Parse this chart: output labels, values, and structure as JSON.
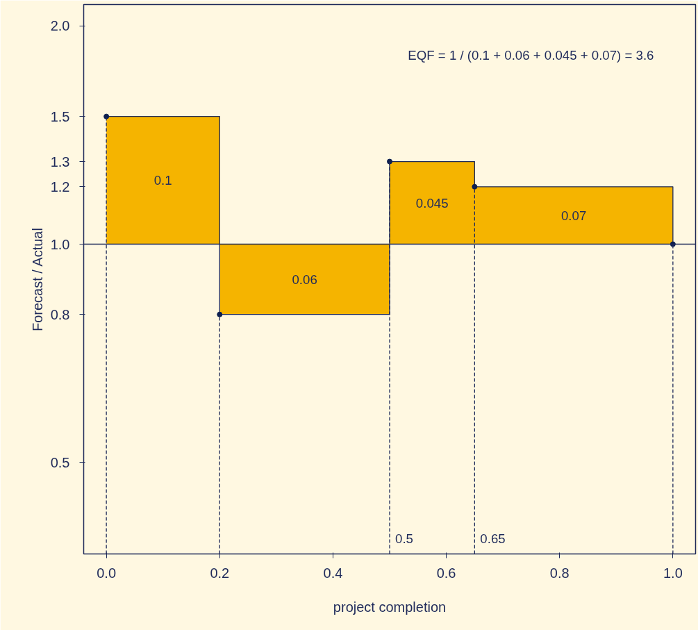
{
  "chart_data": {
    "type": "area",
    "xlabel": "project completion",
    "ylabel": "Forecast / Actual",
    "log": "y",
    "grid": false,
    "xlim": [
      -0.04,
      1.04
    ],
    "ylim": [
      0.374,
      2.14
    ],
    "xticks": [
      {
        "value": 0,
        "label": "0.0"
      },
      0.2,
      0.4,
      0.6,
      0.8,
      {
        "value": 1,
        "label": "1.0"
      }
    ],
    "yticks": [
      0.5,
      0.8,
      {
        "value": 1,
        "label": "1.0"
      },
      1.2,
      1.3,
      1.5,
      {
        "value": 2,
        "label": "2.0"
      }
    ],
    "series": [
      {
        "color": "#f5b400",
        "x": [
          0,
          0.2,
          0.5,
          0.65,
          1.0
        ],
        "values": [
          1.5,
          0.8,
          1.3,
          1.2,
          1.0
        ]
      },
      {
        "type": "scatter",
        "color": "#0d1f4f",
        "marker": "circle",
        "x": [
          0,
          0.2,
          0.5,
          0.65,
          1.0
        ],
        "values": [
          1.5,
          0.8,
          1.3,
          1.2,
          1.0
        ]
      }
    ],
    "ref_lines": [
      {
        "axis": "y",
        "value": 1.0,
        "color": "#1f2a5a",
        "line_style": "solid"
      },
      {
        "axis": "x",
        "value": 0,
        "color": "#1f2a5a",
        "line_style": "dashed"
      },
      {
        "axis": "x",
        "value": 0.2,
        "color": "#1f2a5a",
        "line_style": "dashed"
      },
      {
        "axis": "x",
        "value": 0.5,
        "label": "0.5",
        "color": "#1f2a5a",
        "line_style": "dashed"
      },
      {
        "axis": "x",
        "value": 0.65,
        "label": "0.65",
        "color": "#1f2a5a",
        "line_style": "dashed"
      },
      {
        "axis": "x",
        "value": 1.0,
        "color": "#1f2a5a",
        "line_style": "dashed"
      }
    ],
    "annotations": [
      "0.1",
      "0.06",
      "0.045",
      "0.07",
      "EQF = 1 / (0.1 + 0.06 + 0.045 + 0.07) = 3.6"
    ]
  }
}
